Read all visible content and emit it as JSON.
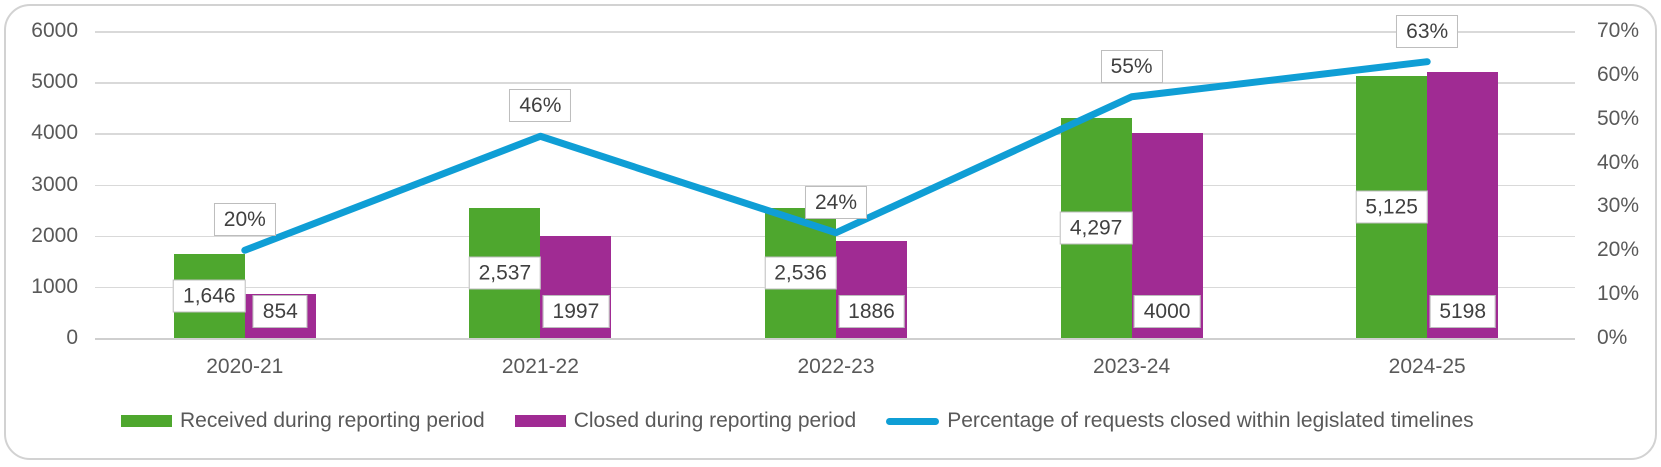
{
  "chart_data": {
    "type": "combo-bar-line",
    "categories": [
      "2020-21",
      "2021-22",
      "2022-23",
      "2023-24",
      "2024-25"
    ],
    "series": [
      {
        "name": "Received during reporting period",
        "type": "bar",
        "axis": "left",
        "color": "#4EA72E",
        "values": [
          1646,
          2537,
          2536,
          4297,
          5125
        ],
        "data_labels": [
          "1,646",
          "2,537",
          "2,536",
          "4,297",
          "5,125"
        ]
      },
      {
        "name": "Closed during reporting period",
        "type": "bar",
        "axis": "left",
        "color": "#A02B93",
        "values": [
          854,
          1997,
          1886,
          4000,
          5198
        ],
        "data_labels": [
          "854",
          "1997",
          "1886",
          "4000",
          "5198"
        ]
      },
      {
        "name": "Percentage of requests closed within legislated timelines",
        "type": "line",
        "axis": "right",
        "color": "#0F9ED5",
        "values": [
          20,
          46,
          24,
          55,
          63
        ],
        "data_labels": [
          "20%",
          "46%",
          "24%",
          "55%",
          "63%"
        ]
      }
    ],
    "left_axis": {
      "min": 0,
      "max": 6000,
      "step": 1000,
      "tick_labels": [
        "6000",
        "5000",
        "4000",
        "3000",
        "2000",
        "1000",
        "0"
      ]
    },
    "right_axis": {
      "min": 0,
      "max": 70,
      "step": 10,
      "tick_labels": [
        "70%",
        "60%",
        "50%",
        "40%",
        "30%",
        "20%",
        "10%",
        "0%"
      ]
    },
    "grid": true,
    "legend_position": "bottom"
  },
  "style": {
    "background": "#FFFFFF",
    "card_border_color": "#D2D2D2",
    "grid_color": "#D9D9D9",
    "axis_text_color": "#595959",
    "data_label_text_color": "#404040",
    "data_label_border_color": "#BDBDBD"
  }
}
